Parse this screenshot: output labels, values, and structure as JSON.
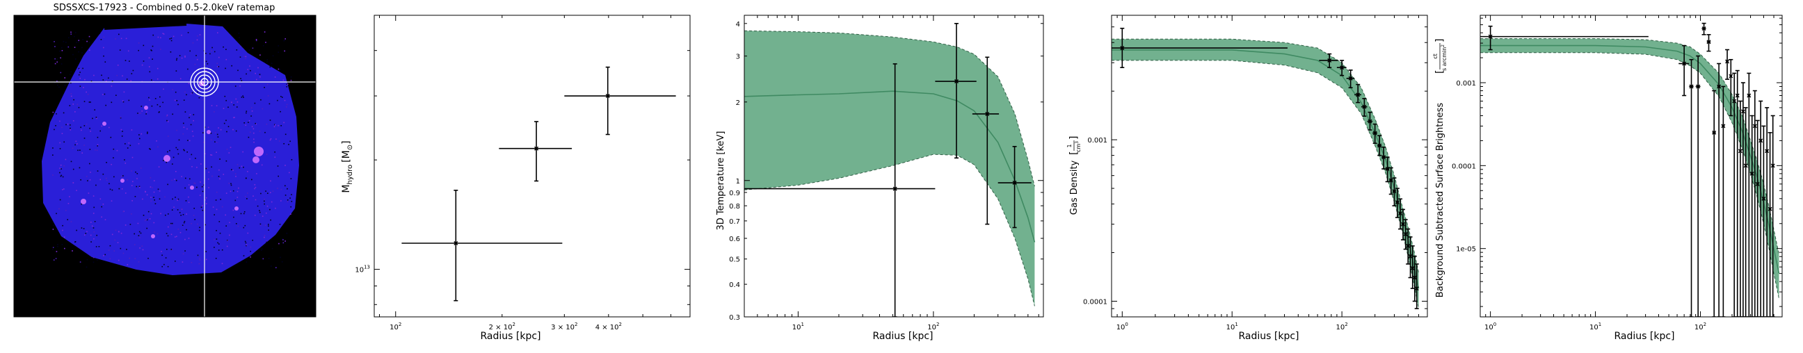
{
  "chart_data": [
    {
      "type": "image",
      "title": "SDSSXCS-17923 - Combined 0.5-2.0keV ratemap",
      "colormap": "gnuplot2 (black-blue-purple-white)",
      "source_marker": "concentric circles + crosshair",
      "colors": {
        "background": "#000000",
        "field": "#2a1fd8",
        "crosshair": "#ffffff"
      }
    },
    {
      "type": "scatter",
      "title": "",
      "xlabel": "Radius [kpc]",
      "ylabel": "M_hydro [M_⊙]",
      "ylabel_parts": {
        "main": "M",
        "sub": "hydro",
        "unit": "[M",
        "unit_sub": "⊙",
        "close": "]"
      },
      "xscale": "log",
      "yscale": "log",
      "xlim": [
        87,
        680
      ],
      "ylim": [
        7400000000000.0,
        50000000000000.0
      ],
      "xticks": [
        {
          "value": 100,
          "base": "10",
          "exp": "2",
          "prefix": ""
        },
        {
          "value": 200,
          "base": "10",
          "exp": "2",
          "prefix": "2 × "
        },
        {
          "value": 300,
          "base": "10",
          "exp": "2",
          "prefix": "3 × "
        },
        {
          "value": 400,
          "base": "10",
          "exp": "2",
          "prefix": "4 × "
        }
      ],
      "yticks": [
        {
          "value": 10000000000000.0,
          "base": "10",
          "exp": "13"
        }
      ],
      "points": [
        {
          "x": 148,
          "xlo": 104,
          "xhi": 296,
          "y": 11800000000000.0,
          "ylo": 8200000000000.0,
          "yhi": 16500000000000.0
        },
        {
          "x": 250,
          "xlo": 196,
          "xhi": 315,
          "y": 21500000000000.0,
          "ylo": 17500000000000.0,
          "yhi": 25500000000000.0
        },
        {
          "x": 398,
          "xlo": 300,
          "xhi": 620,
          "y": 30000000000000.0,
          "ylo": 23500000000000.0,
          "yhi": 36000000000000.0
        }
      ],
      "colors": {
        "points": "#000000"
      }
    },
    {
      "type": "scatter",
      "title": "",
      "xlabel": "Radius [kpc]",
      "ylabel": "3D Temperature [keV]",
      "xscale": "log",
      "yscale": "log",
      "xlim": [
        4,
        650
      ],
      "ylim": [
        0.3,
        4.3
      ],
      "xticks": [
        {
          "value": 10,
          "base": "10",
          "exp": "1",
          "prefix": ""
        },
        {
          "value": 100,
          "base": "10",
          "exp": "2",
          "prefix": ""
        }
      ],
      "yticks": [
        {
          "value": 0.3,
          "label": "0.3"
        },
        {
          "value": 0.4,
          "label": "0.4"
        },
        {
          "value": 0.5,
          "label": "0.5"
        },
        {
          "value": 0.6,
          "label": "0.6"
        },
        {
          "value": 0.7,
          "label": "0.7"
        },
        {
          "value": 0.8,
          "label": "0.8"
        },
        {
          "value": 0.9,
          "label": "0.9"
        },
        {
          "value": 1,
          "label": "1"
        },
        {
          "value": 2,
          "label": "2"
        },
        {
          "value": 3,
          "label": "3"
        },
        {
          "value": 4,
          "label": "4"
        }
      ],
      "model_band": {
        "r": [
          4,
          10,
          20,
          50,
          100,
          150,
          200,
          300,
          400,
          500,
          560
        ],
        "median": [
          2.1,
          2.13,
          2.15,
          2.2,
          2.15,
          2.02,
          1.85,
          1.4,
          1.0,
          0.72,
          0.58
        ],
        "lower": [
          0.92,
          0.96,
          1.02,
          1.14,
          1.26,
          1.25,
          1.15,
          0.85,
          0.6,
          0.42,
          0.33
        ],
        "upper": [
          3.75,
          3.72,
          3.68,
          3.55,
          3.4,
          3.25,
          3.05,
          2.5,
          1.8,
          1.2,
          0.95
        ]
      },
      "points": [
        {
          "x": 52,
          "xlo": 0.5,
          "xhi": 103,
          "y": 0.93,
          "ylo": 0.3,
          "yhi": 2.8
        },
        {
          "x": 148,
          "xlo": 103,
          "xhi": 208,
          "y": 2.4,
          "ylo": 1.22,
          "yhi": 4.0
        },
        {
          "x": 250,
          "xlo": 194,
          "xhi": 305,
          "y": 1.8,
          "ylo": 0.68,
          "yhi": 2.97
        },
        {
          "x": 398,
          "xlo": 300,
          "xhi": 530,
          "y": 0.98,
          "ylo": 0.66,
          "yhi": 1.35
        }
      ],
      "colors": {
        "band": "#6aad89",
        "line": "#3f8a62",
        "points": "#000000"
      }
    },
    {
      "type": "scatter",
      "title": "",
      "xlabel": "Radius [kpc]",
      "ylabel": "Gas Density",
      "ylabel_unit": {
        "num": "1",
        "den": "cm",
        "exp": "3"
      },
      "xscale": "log",
      "yscale": "log",
      "xlim": [
        0.8,
        600
      ],
      "ylim": [
        8e-05,
        0.0059
      ],
      "xticks": [
        {
          "value": 1,
          "base": "10",
          "exp": "0",
          "prefix": ""
        },
        {
          "value": 10,
          "base": "10",
          "exp": "1",
          "prefix": ""
        },
        {
          "value": 100,
          "base": "10",
          "exp": "2",
          "prefix": ""
        }
      ],
      "yticks": [
        {
          "value": 0.0001,
          "label": "0.0001"
        },
        {
          "value": 0.001,
          "label": "0.001"
        }
      ],
      "model_band": {
        "r": [
          0.8,
          10,
          30,
          60,
          100,
          150,
          200,
          250,
          300,
          350,
          400,
          450,
          500
        ],
        "median": [
          0.0036,
          0.0036,
          0.0034,
          0.0031,
          0.0025,
          0.0017,
          0.0011,
          0.00075,
          0.0005,
          0.00034,
          0.00024,
          0.00017,
          0.00012
        ],
        "lower": [
          0.0031,
          0.0031,
          0.0029,
          0.0026,
          0.0021,
          0.00145,
          0.00092,
          0.00062,
          0.00041,
          0.00028,
          0.00019,
          0.00013,
          9e-05
        ],
        "upper": [
          0.0042,
          0.0042,
          0.004,
          0.0037,
          0.003,
          0.0021,
          0.00135,
          0.0009,
          0.0006,
          0.0004,
          0.00029,
          0.00021,
          0.00015
        ]
      },
      "points": [
        {
          "x": 1.0,
          "xlo": 0.8,
          "xhi": 32,
          "y": 0.0037,
          "ylo": 0.0028,
          "yhi": 0.0049
        },
        {
          "x": 77,
          "xlo": 62,
          "xhi": 92,
          "y": 0.0031,
          "ylo": 0.0028,
          "yhi": 0.0034
        },
        {
          "x": 100,
          "xlo": 90,
          "xhi": 110,
          "y": 0.0028,
          "ylo": 0.0025,
          "yhi": 0.0031
        },
        {
          "x": 120,
          "xlo": 110,
          "xhi": 130,
          "y": 0.0024,
          "ylo": 0.0021,
          "yhi": 0.0027
        },
        {
          "x": 140,
          "xlo": 130,
          "xhi": 150,
          "y": 0.0019,
          "ylo": 0.0017,
          "yhi": 0.0022
        },
        {
          "x": 160,
          "xlo": 150,
          "xhi": 170,
          "y": 0.0016,
          "ylo": 0.0014,
          "yhi": 0.0018
        },
        {
          "x": 180,
          "xlo": 170,
          "xhi": 190,
          "y": 0.0013,
          "ylo": 0.00115,
          "yhi": 0.00148
        },
        {
          "x": 200,
          "xlo": 190,
          "xhi": 210,
          "y": 0.0011,
          "ylo": 0.00095,
          "yhi": 0.00125
        },
        {
          "x": 220,
          "xlo": 210,
          "xhi": 230,
          "y": 0.00092,
          "ylo": 0.0008,
          "yhi": 0.00106
        },
        {
          "x": 240,
          "xlo": 230,
          "xhi": 250,
          "y": 0.00078,
          "ylo": 0.00066,
          "yhi": 0.0009
        },
        {
          "x": 260,
          "xlo": 250,
          "xhi": 270,
          "y": 0.00066,
          "ylo": 0.00055,
          "yhi": 0.00078
        },
        {
          "x": 280,
          "xlo": 270,
          "xhi": 290,
          "y": 0.00056,
          "ylo": 0.00046,
          "yhi": 0.00067
        },
        {
          "x": 300,
          "xlo": 290,
          "xhi": 310,
          "y": 0.00048,
          "ylo": 0.00039,
          "yhi": 0.00058
        },
        {
          "x": 320,
          "xlo": 310,
          "xhi": 330,
          "y": 0.00041,
          "ylo": 0.00033,
          "yhi": 0.0005
        },
        {
          "x": 340,
          "xlo": 330,
          "xhi": 350,
          "y": 0.00035,
          "ylo": 0.00028,
          "yhi": 0.00043
        },
        {
          "x": 360,
          "xlo": 350,
          "xhi": 370,
          "y": 0.0003,
          "ylo": 0.00024,
          "yhi": 0.00037
        },
        {
          "x": 380,
          "xlo": 370,
          "xhi": 390,
          "y": 0.00026,
          "ylo": 0.00021,
          "yhi": 0.00032
        },
        {
          "x": 400,
          "xlo": 390,
          "xhi": 410,
          "y": 0.00022,
          "ylo": 0.00017,
          "yhi": 0.00028
        },
        {
          "x": 420,
          "xlo": 410,
          "xhi": 430,
          "y": 0.00019,
          "ylo": 0.00014,
          "yhi": 0.00025
        },
        {
          "x": 440,
          "xlo": 430,
          "xhi": 450,
          "y": 0.00016,
          "ylo": 0.00012,
          "yhi": 0.00022
        },
        {
          "x": 460,
          "xlo": 450,
          "xhi": 470,
          "y": 0.00014,
          "ylo": 0.0001,
          "yhi": 0.00019
        },
        {
          "x": 480,
          "xlo": 470,
          "xhi": 490,
          "y": 0.00012,
          "ylo": 9e-05,
          "yhi": 0.00017
        }
      ],
      "colors": {
        "band": "#6aad89",
        "line": "#3f8a62",
        "points": "#000000"
      }
    },
    {
      "type": "scatter",
      "title": "",
      "xlabel": "Radius [kpc]",
      "ylabel": "Background Subtracted Surface Brightness",
      "ylabel_unit": {
        "num": "ct",
        "den": "s arcmin",
        "exp": "2"
      },
      "xscale": "log",
      "yscale": "log",
      "xlim": [
        0.8,
        600
      ],
      "ylim": [
        1.5e-06,
        0.0065
      ],
      "xticks": [
        {
          "value": 1,
          "base": "10",
          "exp": "0",
          "prefix": ""
        },
        {
          "value": 10,
          "base": "10",
          "exp": "1",
          "prefix": ""
        },
        {
          "value": 100,
          "base": "10",
          "exp": "2",
          "prefix": ""
        }
      ],
      "yticks": [
        {
          "value": 1e-05,
          "label": "1e-05"
        },
        {
          "value": 0.0001,
          "label": "0.0001"
        },
        {
          "value": 0.001,
          "label": "0.001"
        }
      ],
      "model_band": {
        "r": [
          0.8,
          10,
          30,
          60,
          80,
          100,
          150,
          200,
          250,
          300,
          350,
          400,
          450,
          500,
          560
        ],
        "median": [
          0.0028,
          0.0028,
          0.0027,
          0.0024,
          0.0021,
          0.0017,
          0.00095,
          0.0005,
          0.00026,
          0.00013,
          7e-05,
          3.6e-05,
          1.9e-05,
          1e-05,
          5e-06
        ],
        "lower": [
          0.0023,
          0.0023,
          0.0022,
          0.0019,
          0.0016,
          0.0013,
          0.00068,
          0.00033,
          0.00016,
          8e-05,
          4e-05,
          2e-05,
          1e-05,
          5e-06,
          2.5e-06
        ],
        "upper": [
          0.0034,
          0.0034,
          0.0033,
          0.003,
          0.0027,
          0.0022,
          0.0013,
          0.00072,
          0.0004,
          0.0002,
          0.00011,
          6e-05,
          3.2e-05,
          1.7e-05,
          8.5e-06
        ]
      },
      "points": [
        {
          "x": 1.0,
          "xlo": 0.8,
          "xhi": 32,
          "y": 0.0036,
          "ylo": 0.0025,
          "yhi": 0.0048
        },
        {
          "x": 70,
          "xlo": 62,
          "xhi": 78,
          "y": 0.0017,
          "ylo": 0.0007,
          "yhi": 0.0028
        },
        {
          "x": 82,
          "xlo": 78,
          "xhi": 86,
          "y": 0.0009,
          "ylo": 1.5e-06,
          "yhi": 0.0019
        },
        {
          "x": 95,
          "xlo": 90,
          "xhi": 100,
          "y": 0.0009,
          "ylo": 1.5e-06,
          "yhi": 0.0021
        },
        {
          "x": 108,
          "xlo": 103,
          "xhi": 113,
          "y": 0.0045,
          "ylo": 0.0038,
          "yhi": 0.0052
        },
        {
          "x": 120,
          "xlo": 115,
          "xhi": 125,
          "y": 0.0031,
          "ylo": 0.0024,
          "yhi": 0.0038
        },
        {
          "x": 135,
          "xlo": 130,
          "xhi": 140,
          "y": 0.00025,
          "ylo": 1.5e-06,
          "yhi": 0.0008
        },
        {
          "x": 150,
          "xlo": 145,
          "xhi": 155,
          "y": 0.0009,
          "ylo": 1.5e-06,
          "yhi": 0.0017
        },
        {
          "x": 165,
          "xlo": 160,
          "xhi": 170,
          "y": 0.0003,
          "ylo": 1.5e-06,
          "yhi": 0.0009
        },
        {
          "x": 180,
          "xlo": 175,
          "xhi": 185,
          "y": 0.0018,
          "ylo": 0.0011,
          "yhi": 0.0025
        },
        {
          "x": 195,
          "xlo": 190,
          "xhi": 200,
          "y": 0.0012,
          "ylo": 0.0004,
          "yhi": 0.0019
        },
        {
          "x": 210,
          "xlo": 205,
          "xhi": 215,
          "y": 0.0006,
          "ylo": 1.5e-06,
          "yhi": 0.0013
        },
        {
          "x": 225,
          "xlo": 220,
          "xhi": 230,
          "y": 0.0007,
          "ylo": 1.5e-06,
          "yhi": 0.0014
        },
        {
          "x": 240,
          "xlo": 235,
          "xhi": 245,
          "y": 0.00015,
          "ylo": 1.5e-06,
          "yhi": 0.0006
        },
        {
          "x": 255,
          "xlo": 250,
          "xhi": 260,
          "y": 0.00045,
          "ylo": 1.5e-06,
          "yhi": 0.001
        },
        {
          "x": 270,
          "xlo": 265,
          "xhi": 275,
          "y": 0.0001,
          "ylo": 1.5e-06,
          "yhi": 0.0005
        },
        {
          "x": 290,
          "xlo": 282,
          "xhi": 298,
          "y": 0.0007,
          "ylo": 1.5e-06,
          "yhi": 0.0013
        },
        {
          "x": 310,
          "xlo": 302,
          "xhi": 318,
          "y": 8e-05,
          "ylo": 1.5e-06,
          "yhi": 0.0004
        },
        {
          "x": 330,
          "xlo": 322,
          "xhi": 338,
          "y": 0.0003,
          "ylo": 1.5e-06,
          "yhi": 0.0008
        },
        {
          "x": 350,
          "xlo": 342,
          "xhi": 358,
          "y": 6e-05,
          "ylo": 1.5e-06,
          "yhi": 0.00035
        },
        {
          "x": 375,
          "xlo": 365,
          "xhi": 385,
          "y": 0.0002,
          "ylo": 1.5e-06,
          "yhi": 0.0006
        },
        {
          "x": 400,
          "xlo": 390,
          "xhi": 410,
          "y": 4e-05,
          "ylo": 1.5e-06,
          "yhi": 0.0003
        },
        {
          "x": 430,
          "xlo": 418,
          "xhi": 442,
          "y": 0.00015,
          "ylo": 1.5e-06,
          "yhi": 0.0005
        },
        {
          "x": 460,
          "xlo": 448,
          "xhi": 472,
          "y": 3e-05,
          "ylo": 1.5e-06,
          "yhi": 0.00025
        },
        {
          "x": 490,
          "xlo": 478,
          "xhi": 502,
          "y": 0.0001,
          "ylo": 1.5e-06,
          "yhi": 0.0004
        }
      ],
      "colors": {
        "band": "#6aad89",
        "line": "#3f8a62",
        "points": "#000000"
      }
    }
  ]
}
